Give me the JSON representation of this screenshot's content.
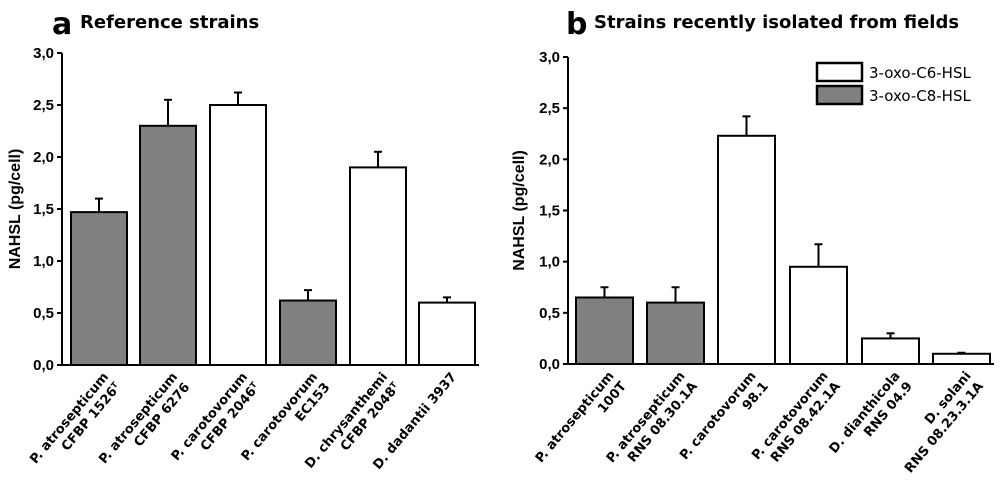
{
  "colors": {
    "3-oxo-C6-HSL": "#ffffff",
    "3-oxo-C8-HSL": "#808080"
  },
  "chart_data": [
    {
      "type": "bar",
      "panel_letter": "a",
      "title": "Reference strains",
      "ylabel": "NAHSL (pg/cell)",
      "xlabel": "",
      "ylim": [
        0,
        3.0
      ],
      "yticks": [
        "0,0",
        "0,5",
        "1,0",
        "1,5",
        "2,0",
        "2,5",
        "3,0"
      ],
      "grid": false,
      "categories": [
        {
          "species": "P. atrosepticum",
          "strain": "CFBP 1526",
          "sup": "T"
        },
        {
          "species": "P. atrosepticum",
          "strain": "CFBP 6276",
          "sup": ""
        },
        {
          "species": "P. carotovorum",
          "strain": "CFBP 2046",
          "sup": "T"
        },
        {
          "species": "P. carotovorum",
          "strain": "EC153",
          "sup": ""
        },
        {
          "species": "D. chrysanthemi",
          "strain": "CFBP 2048",
          "sup": "T"
        },
        {
          "species": "D. dadantii 3937",
          "strain": "",
          "sup": ""
        }
      ],
      "values": [
        1.47,
        2.3,
        2.5,
        0.62,
        1.9,
        0.6
      ],
      "error_upper": [
        1.6,
        2.55,
        2.62,
        0.72,
        2.05,
        0.65
      ],
      "series_of_bar": [
        "3-oxo-C8-HSL",
        "3-oxo-C8-HSL",
        "3-oxo-C6-HSL",
        "3-oxo-C8-HSL",
        "3-oxo-C6-HSL",
        "3-oxo-C6-HSL"
      ]
    },
    {
      "type": "bar",
      "panel_letter": "b",
      "title": "Strains recently isolated from fields",
      "ylabel": "NAHSL (pg/cell)",
      "xlabel": "",
      "ylim": [
        0,
        3.0
      ],
      "yticks": [
        "0,0",
        "0,5",
        "1,0",
        "1,5",
        "2,0",
        "2,5",
        "3,0"
      ],
      "grid": false,
      "legend": {
        "position": "top-right",
        "entries": [
          "3-oxo-C6-HSL",
          "3-oxo-C8-HSL"
        ]
      },
      "categories": [
        {
          "species": "P. atrosepticum",
          "strain": "100T",
          "sup": ""
        },
        {
          "species": "P. atrosepticum",
          "strain": "RNS 08.30.1A",
          "sup": ""
        },
        {
          "species": "P. carotovorum",
          "strain": "98.1",
          "sup": ""
        },
        {
          "species": "P. carotovorum",
          "strain": "RNS 08.42.1A",
          "sup": ""
        },
        {
          "species": "D. dianthicola",
          "strain": "RNS 04.9",
          "sup": ""
        },
        {
          "species": "D. solani",
          "strain": "RNS 08.23.3.1A",
          "sup": ""
        }
      ],
      "values": [
        0.65,
        0.6,
        2.23,
        0.95,
        0.25,
        0.1
      ],
      "error_upper": [
        0.75,
        0.75,
        2.42,
        1.17,
        0.3,
        0.11
      ],
      "series_of_bar": [
        "3-oxo-C8-HSL",
        "3-oxo-C8-HSL",
        "3-oxo-C6-HSL",
        "3-oxo-C6-HSL",
        "3-oxo-C6-HSL",
        "3-oxo-C6-HSL"
      ]
    }
  ]
}
